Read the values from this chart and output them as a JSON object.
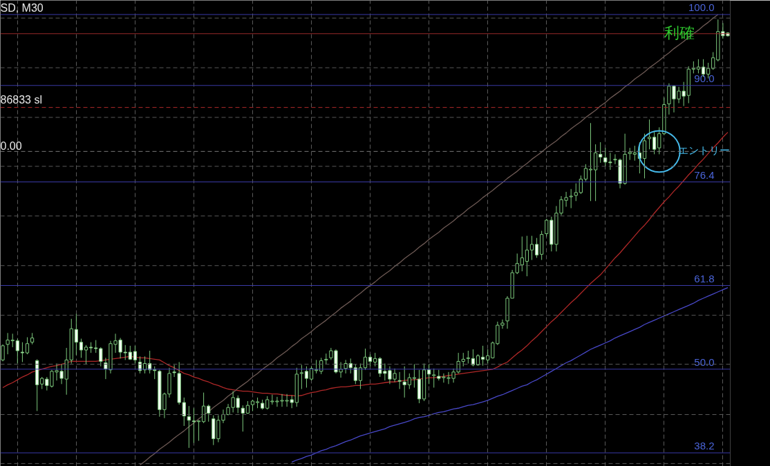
{
  "chart_data": {
    "type": "candlestick",
    "title": "SD, M30",
    "annotations": [
      "利確",
      "エントリー",
      "0.00"
    ],
    "categories": [
      null,
      null,
      null,
      null,
      null,
      null,
      null,
      null,
      null,
      null,
      null,
      null,
      null,
      null,
      null,
      null,
      null,
      null,
      null,
      null,
      null,
      null,
      null,
      null,
      null,
      null,
      null,
      null,
      null,
      null,
      null,
      null,
      null,
      null,
      null,
      null,
      null,
      null,
      null,
      null,
      null,
      null,
      null,
      null,
      null,
      null,
      null,
      null,
      null,
      null,
      null,
      null,
      null,
      null,
      null,
      null,
      null,
      null,
      null,
      null,
      null,
      null,
      null,
      null,
      null,
      null,
      null,
      null,
      null,
      null,
      null,
      null,
      null,
      null,
      null,
      null,
      null,
      null,
      null,
      null,
      null,
      null,
      null,
      null,
      null,
      null,
      null,
      null,
      null,
      null,
      null,
      null,
      null,
      null,
      null,
      null,
      null,
      null,
      null,
      null,
      null,
      null,
      null,
      null,
      null,
      null,
      null,
      null,
      null,
      null,
      null,
      null,
      null,
      null,
      null,
      null,
      null,
      null,
      null,
      null,
      null,
      null,
      null,
      null,
      null,
      null,
      null,
      null,
      null,
      null,
      null,
      null,
      null,
      null,
      null,
      null,
      null,
      null,
      null,
      null,
      null,
      null,
      null,
      null,
      null,
      null,
      null,
      null,
      null
    ],
    "color": "#7cc87c",
    "ohlc": [
      [
        51.3,
        53.5,
        51.1,
        53.3
      ],
      [
        53.5,
        55.1,
        52.1,
        54.1
      ],
      [
        54.0,
        55.0,
        53.1,
        54.1
      ],
      [
        54.0,
        54.3,
        50.8,
        52.6
      ],
      [
        52.4,
        53.8,
        51.0,
        52.3
      ],
      [
        52.3,
        54.5,
        52.1,
        53.6
      ],
      [
        53.8,
        55.1,
        53.5,
        54.4
      ],
      [
        51.2,
        51.4,
        44.1,
        47.8
      ],
      [
        47.9,
        48.9,
        47.2,
        48.7
      ],
      [
        48.6,
        48.9,
        47.0,
        47.7
      ],
      [
        47.6,
        49.9,
        47.4,
        49.7
      ],
      [
        49.6,
        50.8,
        48.4,
        49.8
      ],
      [
        49.7,
        50.7,
        47.9,
        48.7
      ],
      [
        48.6,
        53.0,
        46.4,
        51.3
      ],
      [
        51.3,
        57.1,
        50.8,
        55.7
      ],
      [
        55.6,
        57.8,
        52.0,
        53.8
      ],
      [
        53.8,
        54.3,
        51.6,
        52.7
      ],
      [
        52.7,
        53.4,
        50.7,
        53.1
      ],
      [
        53.1,
        53.8,
        52.3,
        53.0
      ],
      [
        53.0,
        54.1,
        52.3,
        52.9
      ],
      [
        52.9,
        53.1,
        50.4,
        51.1
      ],
      [
        50.9,
        51.6,
        48.6,
        50.0
      ],
      [
        49.9,
        54.0,
        49.4,
        53.6
      ],
      [
        53.5,
        55.0,
        52.3,
        54.0
      ],
      [
        54.1,
        54.4,
        51.5,
        52.4
      ],
      [
        52.4,
        53.4,
        51.3,
        52.3
      ],
      [
        52.4,
        53.3,
        51.3,
        51.4
      ],
      [
        52.5,
        53.3,
        50.8,
        51.3
      ],
      [
        51.0,
        51.8,
        49.4,
        49.8
      ],
      [
        49.9,
        51.8,
        49.4,
        50.8
      ],
      [
        50.8,
        52.6,
        49.4,
        49.9
      ],
      [
        49.9,
        50.4,
        48.6,
        49.8
      ],
      [
        49.7,
        49.9,
        43.3,
        44.3
      ],
      [
        44.3,
        46.7,
        43.1,
        46.5
      ],
      [
        46.5,
        50.2,
        46.0,
        49.4
      ],
      [
        49.6,
        50.6,
        48.9,
        49.5
      ],
      [
        49.4,
        51.0,
        45.0,
        45.3
      ],
      [
        45.3,
        46.0,
        42.0,
        43.4
      ],
      [
        43.3,
        44.8,
        38.9,
        42.8
      ],
      [
        42.7,
        44.5,
        39.6,
        42.6
      ],
      [
        42.6,
        42.8,
        39.9,
        42.7
      ],
      [
        42.6,
        46.7,
        42.4,
        44.8
      ],
      [
        44.8,
        45.0,
        42.6,
        43.8
      ],
      [
        43.0,
        43.5,
        39.3,
        40.2
      ],
      [
        40.2,
        43.5,
        39.7,
        42.8
      ],
      [
        42.8,
        44.3,
        42.4,
        43.6
      ],
      [
        43.6,
        45.1,
        43.5,
        44.6
      ],
      [
        44.6,
        46.9,
        43.9,
        46.0
      ],
      [
        45.9,
        46.3,
        43.8,
        44.6
      ],
      [
        44.5,
        44.9,
        41.2,
        43.8
      ],
      [
        43.8,
        45.5,
        43.7,
        44.9
      ],
      [
        45.0,
        45.7,
        44.1,
        45.5
      ],
      [
        45.3,
        46.0,
        44.5,
        45.4
      ],
      [
        45.2,
        45.7,
        44.3,
        44.5
      ],
      [
        44.5,
        46.2,
        44.3,
        45.7
      ],
      [
        45.4,
        46.4,
        45.0,
        45.5
      ],
      [
        45.4,
        46.1,
        44.7,
        45.5
      ],
      [
        45.5,
        46.5,
        44.7,
        45.6
      ],
      [
        45.5,
        46.5,
        44.7,
        45.6
      ],
      [
        45.7,
        46.3,
        44.5,
        45.3
      ],
      [
        45.3,
        50.2,
        44.7,
        49.3
      ],
      [
        49.4,
        50.6,
        47.2,
        49.5
      ],
      [
        49.7,
        50.4,
        47.4,
        48.7
      ],
      [
        48.6,
        50.4,
        48.4,
        50.1
      ],
      [
        49.8,
        51.3,
        49.4,
        49.9
      ],
      [
        49.7,
        51.6,
        49.3,
        51.2
      ],
      [
        51.3,
        52.2,
        50.7,
        51.4
      ],
      [
        51.6,
        53.0,
        51.3,
        52.6
      ],
      [
        52.6,
        52.8,
        49.4,
        49.6
      ],
      [
        49.6,
        51.0,
        48.8,
        50.0
      ],
      [
        50.1,
        51.3,
        49.4,
        50.8
      ],
      [
        50.8,
        51.5,
        49.4,
        50.2
      ],
      [
        50.2,
        50.7,
        47.9,
        48.4
      ],
      [
        48.4,
        50.8,
        47.2,
        50.2
      ],
      [
        50.2,
        52.9,
        49.9,
        51.7
      ],
      [
        51.7,
        52.1,
        50.4,
        51.1
      ],
      [
        51.0,
        52.3,
        50.4,
        51.5
      ],
      [
        51.5,
        51.7,
        48.9,
        49.4
      ],
      [
        49.7,
        50.8,
        48.4,
        49.4
      ],
      [
        49.8,
        50.4,
        47.9,
        48.6
      ],
      [
        48.6,
        50.1,
        48.2,
        49.4
      ],
      [
        48.4,
        49.6,
        47.2,
        48.3
      ],
      [
        48.2,
        50.4,
        46.0,
        47.8
      ],
      [
        47.8,
        49.4,
        47.2,
        48.8
      ],
      [
        48.7,
        50.7,
        47.4,
        48.8
      ],
      [
        48.6,
        49.9,
        45.2,
        45.8
      ],
      [
        45.8,
        50.8,
        45.5,
        49.9
      ],
      [
        49.9,
        50.7,
        47.9,
        49.3
      ],
      [
        49.1,
        50.1,
        47.4,
        49.2
      ],
      [
        49.0,
        49.9,
        48.4,
        48.7
      ],
      [
        48.8,
        49.4,
        48.1,
        48.9
      ],
      [
        48.7,
        49.6,
        47.9,
        48.8
      ],
      [
        48.7,
        50.1,
        48.1,
        49.6
      ],
      [
        49.6,
        52.3,
        49.4,
        51.1
      ],
      [
        51.1,
        52.3,
        50.4,
        51.4
      ],
      [
        51.5,
        52.6,
        50.8,
        51.6
      ],
      [
        51.5,
        52.8,
        50.4,
        50.6
      ],
      [
        50.6,
        52.1,
        50.5,
        51.9
      ],
      [
        51.7,
        53.3,
        50.5,
        51.4
      ],
      [
        51.3,
        52.8,
        50.8,
        51.9
      ],
      [
        51.6,
        53.9,
        51.5,
        53.7
      ],
      [
        53.6,
        56.7,
        53.4,
        56.2
      ],
      [
        56.2,
        57.0,
        55.7,
        56.5
      ],
      [
        56.8,
        60.3,
        55.7,
        60.0
      ],
      [
        60.0,
        64.0,
        60.0,
        63.6
      ],
      [
        63.6,
        66.3,
        63.4,
        64.9
      ],
      [
        64.7,
        68.7,
        63.8,
        65.7
      ],
      [
        65.2,
        68.8,
        63.1,
        66.8
      ],
      [
        66.8,
        68.8,
        65.4,
        67.6
      ],
      [
        67.6,
        68.5,
        65.7,
        66.1
      ],
      [
        66.2,
        69.5,
        65.4,
        69.0
      ],
      [
        69.1,
        71.2,
        68.7,
        71.0
      ],
      [
        71.0,
        71.5,
        66.6,
        67.6
      ],
      [
        67.6,
        73.0,
        66.6,
        72.0
      ],
      [
        72.0,
        74.4,
        71.7,
        73.9
      ],
      [
        73.8,
        75.0,
        72.9,
        74.2
      ],
      [
        74.3,
        75.4,
        72.7,
        74.4
      ],
      [
        74.5,
        76.2,
        73.7,
        74.9
      ],
      [
        74.9,
        77.3,
        74.7,
        76.8
      ],
      [
        76.8,
        78.9,
        76.5,
        78.3
      ],
      [
        78.1,
        84.7,
        73.7,
        78.2
      ],
      [
        78.1,
        81.7,
        73.7,
        80.5
      ],
      [
        80.3,
        82.0,
        79.1,
        79.9
      ],
      [
        79.8,
        81.2,
        78.6,
        79.2
      ],
      [
        79.2,
        80.5,
        78.1,
        79.1
      ],
      [
        79.5,
        80.3,
        78.9,
        79.6
      ],
      [
        79.5,
        79.7,
        75.5,
        76.2
      ],
      [
        76.2,
        83.2,
        76.0,
        80.3
      ],
      [
        80.4,
        81.2,
        79.5,
        80.6
      ],
      [
        80.3,
        81.5,
        79.4,
        80.5
      ],
      [
        80.5,
        82.0,
        77.6,
        79.7
      ],
      [
        79.7,
        83.2,
        76.9,
        82.2
      ],
      [
        82.5,
        85.2,
        81.0,
        82.7
      ],
      [
        82.7,
        83.5,
        80.3,
        81.0
      ],
      [
        81.2,
        84.1,
        80.3,
        83.2
      ],
      [
        83.2,
        88.3,
        83.0,
        87.3
      ],
      [
        87.4,
        90.3,
        85.9,
        89.9
      ],
      [
        89.9,
        90.0,
        86.2,
        88.1
      ],
      [
        88.1,
        89.8,
        87.5,
        89.2
      ],
      [
        89.2,
        90.5,
        87.1,
        88.5
      ],
      [
        88.6,
        92.7,
        87.5,
        92.3
      ],
      [
        92.3,
        93.4,
        91.7,
        92.4
      ],
      [
        92.3,
        93.7,
        91.7,
        92.6
      ],
      [
        92.6,
        93.7,
        91.2,
        91.6
      ],
      [
        91.6,
        93.2,
        91.0,
        92.4
      ],
      [
        92.4,
        94.7,
        92.2,
        93.9
      ],
      [
        93.6,
        99.3,
        93.4,
        97.6
      ],
      [
        97.6,
        98.8,
        96.6,
        97.0
      ],
      [
        97.4,
        97.5,
        96.9,
        97.0
      ]
    ],
    "series": [
      {
        "type": "line",
        "color": "#b02828",
        "values": [
          47.4,
          47.8,
          48.1,
          48.5,
          48.9,
          49.2,
          49.6,
          49.8,
          50.0,
          50.2,
          50.4,
          50.5,
          50.7,
          50.9,
          51.1,
          51.1,
          51.1,
          51.1,
          51.1,
          51.1,
          51.2,
          51.3,
          51.4,
          51.5,
          51.6,
          51.7,
          51.8,
          51.7,
          51.6,
          51.6,
          51.5,
          51.4,
          51.3,
          50.9,
          50.5,
          50.2,
          49.8,
          49.4,
          49.2,
          48.9,
          48.7,
          48.4,
          48.2,
          47.9,
          47.7,
          47.4,
          47.2,
          47.1,
          47.0,
          46.9,
          46.9,
          46.8,
          46.7,
          46.6,
          46.6,
          46.5,
          46.5,
          46.4,
          46.3,
          46.3,
          46.2,
          46.3,
          46.5,
          46.7,
          46.8,
          47.0,
          47.1,
          47.3,
          47.4,
          47.5,
          47.5,
          47.6,
          47.7,
          47.7,
          47.8,
          47.9,
          47.9,
          48.0,
          48.1,
          48.2,
          48.2,
          48.3,
          48.4,
          48.5,
          48.5,
          48.6,
          48.7,
          48.8,
          48.8,
          48.9,
          49.0,
          49.1,
          49.2,
          49.3,
          49.4,
          49.5,
          49.6,
          49.7,
          49.8,
          49.9,
          50.0,
          50.3,
          50.7,
          51.0,
          51.6,
          52.2,
          52.7,
          53.3,
          54.0,
          54.6,
          55.3,
          56.0,
          56.7,
          57.3,
          58.0,
          58.7,
          59.4,
          60.0,
          60.7,
          61.4,
          62.1,
          62.7,
          63.3,
          64.1,
          64.9,
          65.7,
          66.4,
          67.2,
          68.0,
          68.8,
          69.6,
          70.3,
          71.1,
          72.0,
          72.8,
          73.6,
          74.3,
          75.1,
          75.8,
          76.6,
          77.4,
          78.1,
          78.9,
          79.6,
          80.4,
          81.2,
          81.9,
          82.7,
          83.4
        ]
      },
      {
        "type": "line",
        "color": "#4848c8",
        "values": [
          null,
          null,
          null,
          null,
          null,
          null,
          null,
          null,
          null,
          null,
          null,
          null,
          null,
          null,
          null,
          null,
          null,
          null,
          null,
          null,
          null,
          null,
          null,
          null,
          null,
          null,
          null,
          null,
          null,
          null,
          null,
          null,
          null,
          null,
          null,
          null,
          null,
          null,
          null,
          null,
          null,
          null,
          null,
          null,
          null,
          null,
          null,
          null,
          null,
          null,
          null,
          null,
          null,
          null,
          null,
          null,
          null,
          null,
          null,
          36.9,
          37.2,
          37.4,
          37.7,
          37.9,
          38.2,
          38.5,
          38.7,
          39.0,
          39.2,
          39.5,
          39.8,
          40.0,
          40.3,
          40.6,
          40.8,
          41.0,
          41.2,
          41.4,
          41.6,
          41.9,
          42.1,
          42.3,
          42.5,
          42.7,
          43.0,
          43.2,
          43.3,
          43.5,
          43.7,
          43.9,
          44.0,
          44.2,
          44.4,
          44.5,
          44.7,
          44.9,
          45.0,
          45.2,
          45.4,
          45.6,
          45.9,
          46.2,
          46.4,
          46.7,
          47.0,
          47.3,
          47.6,
          47.8,
          48.2,
          48.5,
          48.9,
          49.3,
          49.7,
          50.1,
          50.5,
          50.9,
          51.2,
          51.6,
          52.0,
          52.4,
          52.8,
          53.1,
          53.4,
          53.7,
          54.0,
          54.4,
          54.7,
          55.0,
          55.3,
          55.6,
          55.9,
          56.3,
          56.6,
          56.9,
          57.2,
          57.5,
          57.8,
          58.1,
          58.4,
          58.7,
          59.0,
          59.3,
          59.7,
          60.0,
          60.3,
          60.6,
          60.9,
          61.2,
          61.5
        ]
      },
      {
        "type": "line",
        "color": "#6e5a55",
        "values": [
          null,
          null,
          null,
          null,
          null,
          null,
          null,
          null,
          null,
          null,
          null,
          null,
          null,
          null,
          null,
          null,
          null,
          null,
          null,
          null,
          null,
          null,
          null,
          null,
          null,
          null,
          null,
          null,
          36.5,
          37.0,
          37.6,
          38.1,
          38.7,
          39.2,
          39.7,
          40.3,
          40.8,
          41.3,
          41.9,
          42.4,
          43.0,
          43.5,
          44.0,
          44.6,
          45.1,
          45.6,
          46.2,
          46.7,
          47.3,
          47.8,
          48.3,
          48.9,
          49.4,
          50.0,
          50.5,
          51.0,
          51.6,
          52.1,
          52.6,
          53.2,
          53.7,
          54.3,
          54.8,
          55.3,
          55.9,
          56.4,
          56.9,
          57.5,
          58.0,
          58.6,
          59.1,
          59.6,
          60.2,
          60.7,
          61.3,
          61.8,
          62.3,
          62.9,
          63.4,
          63.9,
          64.5,
          65.0,
          65.6,
          66.1,
          66.6,
          67.2,
          67.7,
          68.3,
          68.8,
          69.3,
          69.9,
          70.4,
          70.9,
          71.5,
          72.0,
          72.6,
          73.1,
          73.6,
          74.2,
          74.7,
          75.2,
          75.8,
          76.3,
          76.9,
          77.4,
          77.9,
          78.5,
          79.0,
          79.6,
          80.1,
          80.6,
          81.2,
          81.7,
          82.2,
          82.8,
          83.3,
          83.9,
          84.4,
          84.9,
          85.5,
          86.0,
          86.5,
          87.1,
          87.6,
          88.2,
          88.7,
          89.2,
          89.8,
          90.3,
          90.9,
          91.4,
          91.9,
          92.5,
          93.0,
          93.5,
          94.1,
          94.6,
          95.2,
          95.7,
          96.2,
          96.8,
          97.3,
          97.8,
          98.4,
          98.9,
          99.5,
          100.0,
          null,
          null
        ]
      }
    ],
    "ylim": [
      36.3,
      102.0
    ],
    "yticks": [
      {
        "value": 38.2,
        "label": "38.2"
      },
      {
        "value": 50,
        "label": "50.0"
      },
      {
        "value": 61.8,
        "label": "61.8"
      },
      {
        "value": 76.4,
        "label": "76.4"
      },
      {
        "value": 90,
        "label": "90.0"
      },
      {
        "value": 100,
        "label": "100.0"
      }
    ],
    "tick_labels": "y",
    "grid": "x",
    "line_style": "solid",
    "ref_lines": [
      {
        "axis": "y",
        "value": 100.0,
        "label": null,
        "color": "#3a3aa8"
      },
      {
        "axis": "y",
        "value": 90.0,
        "label": null,
        "color": "#3a3aa8"
      },
      {
        "axis": "y",
        "value": 76.4,
        "label": null,
        "color": "#3a3aa8"
      },
      {
        "axis": "y",
        "value": 61.8,
        "label": null,
        "color": "#3a3aa8"
      },
      {
        "axis": "y",
        "value": 50.0,
        "label": null,
        "color": "#3a3aa8"
      },
      {
        "axis": "y",
        "value": 38.2,
        "label": null,
        "color": "#3a3aa8"
      },
      {
        "axis": "y",
        "value": 36.7,
        "label": null,
        "color": "#5a5a5a",
        "line_style": "dashed"
      },
      {
        "axis": "y",
        "value": 43.6,
        "label": null,
        "color": "#5a5a5a",
        "line_style": "dashed"
      },
      {
        "axis": "y",
        "value": 50.7,
        "label": null,
        "color": "#5a5a5a",
        "line_style": "dashed"
      },
      {
        "axis": "y",
        "value": 57.6,
        "label": null,
        "color": "#5a5a5a",
        "line_style": "dashed"
      },
      {
        "axis": "y",
        "value": 64.6,
        "label": null,
        "color": "#5a5a5a",
        "line_style": "dashed"
      },
      {
        "axis": "y",
        "value": 71.6,
        "label": null,
        "color": "#5a5a5a",
        "line_style": "dashed"
      },
      {
        "axis": "y",
        "value": 78.6,
        "label": null,
        "color": "#5a5a5a",
        "line_style": "dashed"
      },
      {
        "axis": "y",
        "value": 85.5,
        "label": null,
        "color": "#5a5a5a",
        "line_style": "dashed"
      },
      {
        "axis": "y",
        "value": 92.5,
        "label": null,
        "color": "#5a5a5a",
        "line_style": "dashed"
      },
      {
        "axis": "y",
        "value": 99.5,
        "label": null,
        "color": "#5a5a5a",
        "line_style": "dashed"
      },
      {
        "axis": "y",
        "value": 97.3,
        "label": null,
        "color": "#9a2a2a"
      },
      {
        "axis": "y",
        "value": 86.9,
        "label": "86833 sl",
        "color": "#b02828",
        "line_style": "dashed"
      },
      {
        "axis": "y",
        "value": 80.7,
        "label": null,
        "color": "#7a7a7a",
        "line_style": "dashed"
      }
    ]
  }
}
